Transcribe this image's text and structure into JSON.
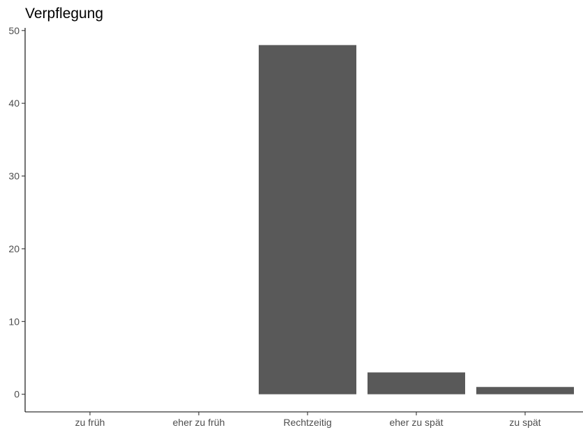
{
  "chart_data": {
    "type": "bar",
    "title": "Verpflegung",
    "xlabel": "",
    "ylabel": "",
    "categories": [
      "zu früh",
      "eher zu früh",
      "Rechtzeitig",
      "eher zu spät",
      "zu spät"
    ],
    "values": [
      0,
      0,
      48,
      3,
      1
    ],
    "ylim": [
      0,
      50
    ],
    "yticks": [
      0,
      10,
      20,
      30,
      40,
      50
    ],
    "ytick_labels": [
      "0",
      "10",
      "20",
      "30",
      "40",
      "50"
    ],
    "grid": false,
    "legend": "none",
    "bar_color": "#595959"
  }
}
